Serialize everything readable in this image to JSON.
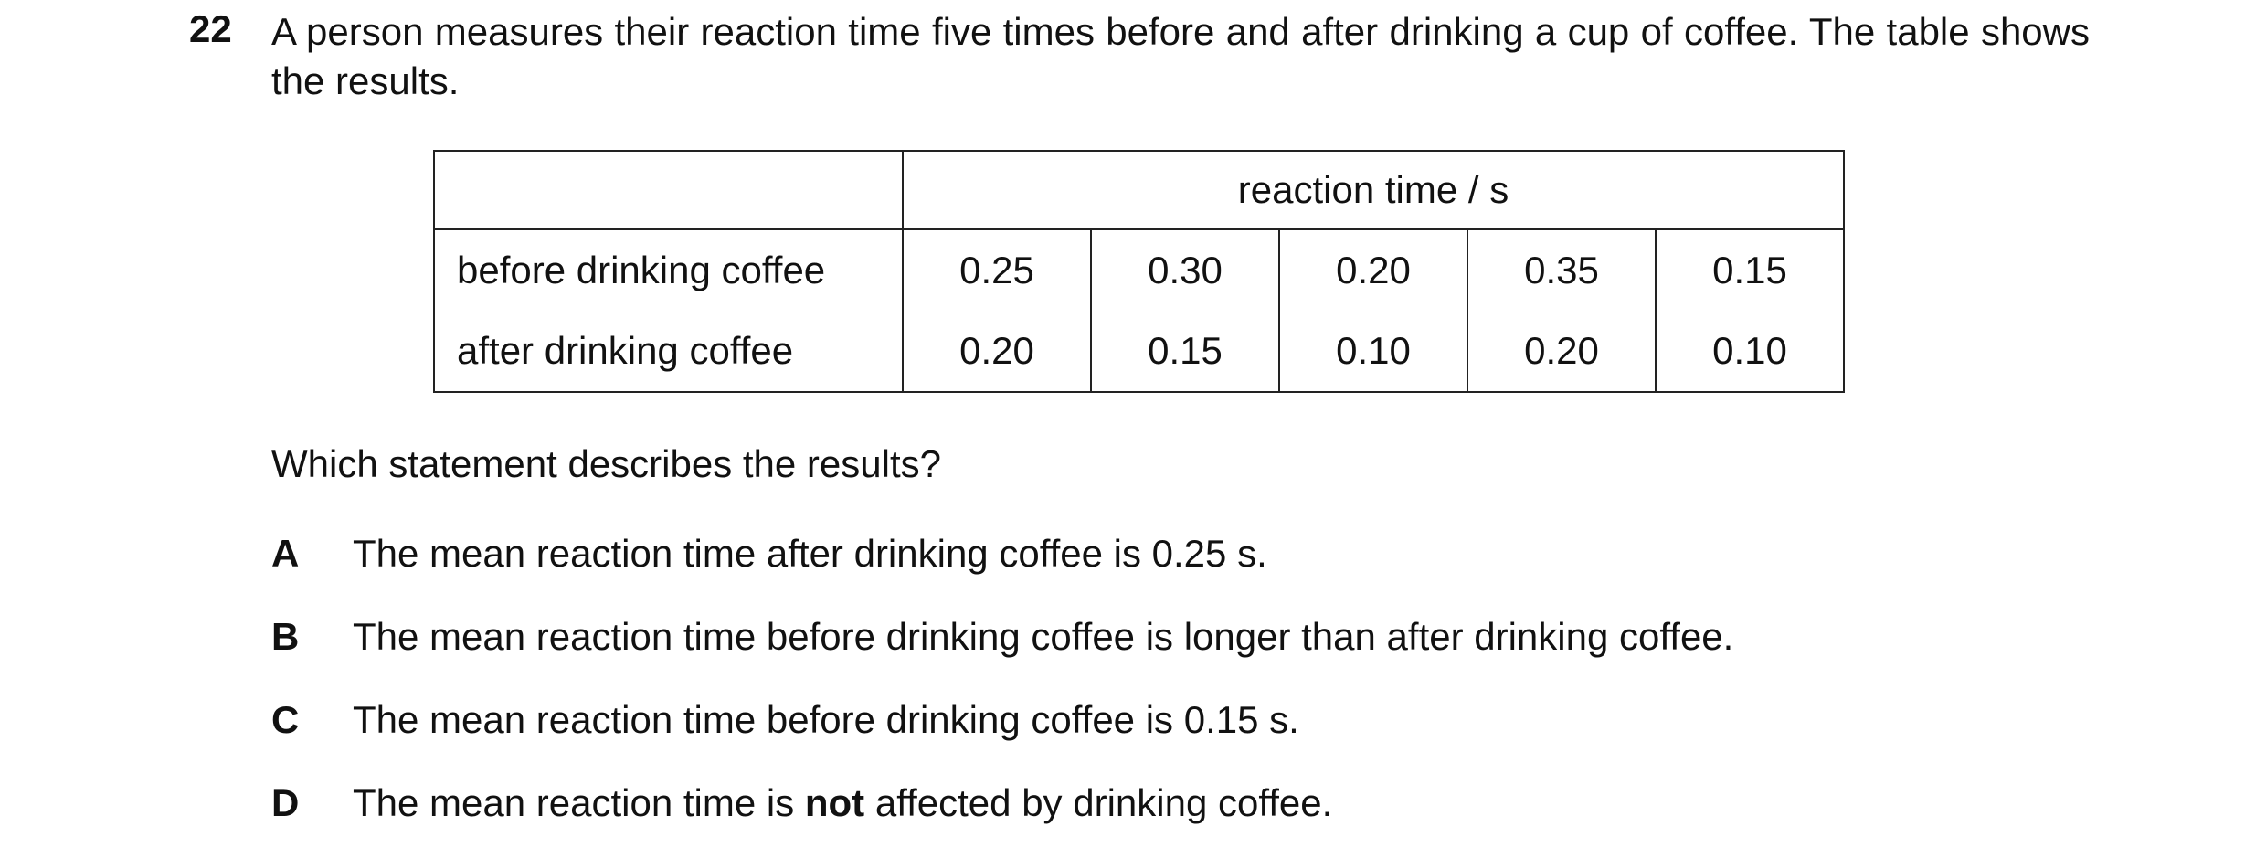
{
  "question": {
    "number": "22",
    "text": "A person measures their reaction time five times before and after drinking a cup of coffee. The table shows the results."
  },
  "table": {
    "header": "reaction time / s",
    "rows": [
      {
        "label": "before drinking coffee",
        "values": [
          "0.25",
          "0.30",
          "0.20",
          "0.35",
          "0.15"
        ]
      },
      {
        "label": "after drinking coffee",
        "values": [
          "0.20",
          "0.15",
          "0.10",
          "0.20",
          "0.10"
        ]
      }
    ]
  },
  "prompt": "Which statement describes the results?",
  "options": [
    {
      "letter": "A",
      "parts": [
        "The mean reaction time after drinking coffee is 0.25 s."
      ]
    },
    {
      "letter": "B",
      "parts": [
        "The mean reaction time before drinking coffee is longer than after drinking coffee."
      ]
    },
    {
      "letter": "C",
      "parts": [
        "The mean reaction time before drinking coffee is 0.15 s."
      ]
    },
    {
      "letter": "D",
      "parts": [
        "The mean reaction time is ",
        "not",
        " affected by drinking coffee."
      ],
      "bold_part": 1
    }
  ]
}
